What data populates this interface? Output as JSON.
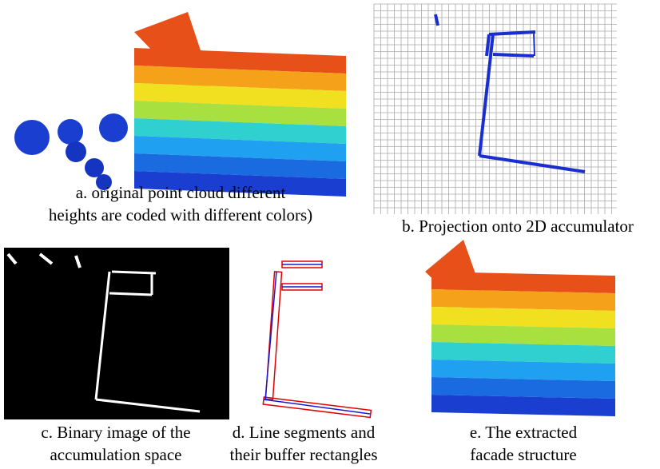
{
  "panels": [
    {
      "caption": [
        "a. original point cloud  different",
        "heights are coded with different colors)"
      ]
    },
    {
      "caption": [
        "b. Projection onto 2D accumulator"
      ]
    },
    {
      "caption": [
        "c. Binary image of the",
        "accumulation space"
      ]
    },
    {
      "caption": [
        "d. Line segments and",
        "their buffer rectangles"
      ]
    },
    {
      "caption": [
        "e. The extracted",
        "facade structure"
      ]
    }
  ]
}
